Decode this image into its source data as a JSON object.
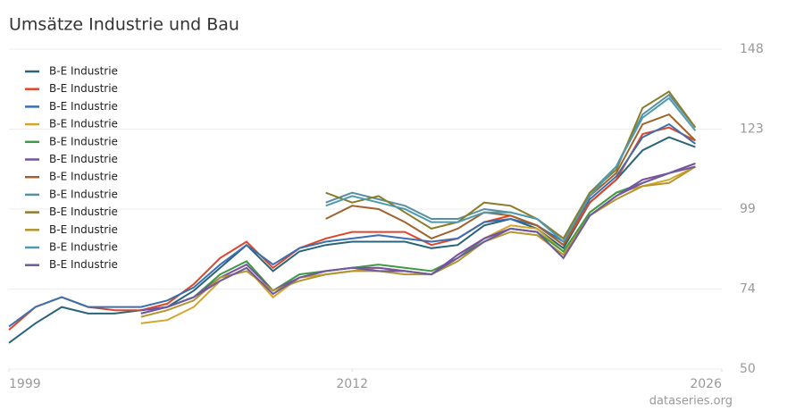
{
  "chart_data": {
    "type": "line",
    "title": "Umsätze Industrie und Bau",
    "source": "dataseries.org",
    "x": [
      1999,
      2000,
      2001,
      2002,
      2003,
      2004,
      2005,
      2006,
      2007,
      2008,
      2009,
      2010,
      2011,
      2012,
      2013,
      2014,
      2015,
      2016,
      2017,
      2018,
      2019,
      2020,
      2021,
      2022,
      2023,
      2024,
      2025
    ],
    "xlim": [
      1999,
      2026
    ],
    "xticks": [
      1999,
      2012,
      2026
    ],
    "ylim": [
      50,
      148
    ],
    "yticks": [
      50,
      {
        "value": 74.5,
        "label": "74"
      },
      99,
      {
        "value": 123.5,
        "label": "123"
      },
      148
    ],
    "grid": true,
    "series": [
      {
        "name": "B-E Industrie",
        "color": "#2a6478",
        "values": [
          58,
          64,
          69,
          67,
          67,
          68,
          69,
          74,
          81,
          88,
          80,
          86,
          88,
          89,
          89,
          89,
          87,
          88,
          94,
          96,
          93,
          87,
          101,
          108,
          117,
          121,
          118
        ]
      },
      {
        "name": "B-E Industrie",
        "color": "#e0452a",
        "values": [
          62,
          69,
          72,
          69,
          68,
          68,
          70,
          76,
          84,
          89,
          81,
          87,
          90,
          92,
          92,
          92,
          88,
          90,
          95,
          97,
          94,
          88,
          101,
          108,
          122,
          124,
          120
        ]
      },
      {
        "name": "B-E Industrie",
        "color": "#3a6fb0",
        "values": [
          63,
          69,
          72,
          69,
          69,
          69,
          71,
          75,
          82,
          88,
          82,
          87,
          89,
          90,
          91,
          90,
          89,
          90,
          95,
          96,
          94,
          89,
          102,
          109,
          121,
          125,
          119
        ]
      },
      {
        "name": "B-E Industrie",
        "color": "#d4a52b",
        "values": [
          null,
          null,
          null,
          null,
          null,
          64,
          65,
          69,
          77,
          81,
          72,
          78,
          79,
          80,
          81,
          80,
          79,
          84,
          90,
          94,
          93,
          86,
          98,
          104,
          106,
          108,
          112
        ]
      },
      {
        "name": "B-E Industrie",
        "color": "#3f9a45",
        "values": [
          null,
          null,
          null,
          null,
          null,
          67,
          69,
          72,
          79,
          83,
          74,
          79,
          80,
          81,
          82,
          81,
          80,
          84,
          90,
          93,
          92,
          86,
          98,
          104,
          107,
          110,
          113
        ]
      },
      {
        "name": "B-E Industrie",
        "color": "#7b4fa6",
        "values": [
          null,
          null,
          null,
          null,
          null,
          68,
          69,
          72,
          78,
          82,
          74,
          78,
          80,
          81,
          81,
          80,
          79,
          85,
          90,
          93,
          92,
          84,
          97,
          103,
          108,
          110,
          113
        ]
      },
      {
        "name": "B-E Industrie",
        "color": "#a0622d",
        "values": [
          null,
          null,
          null,
          null,
          null,
          null,
          null,
          null,
          null,
          null,
          null,
          null,
          96,
          100,
          99,
          95,
          90,
          93,
          98,
          97,
          94,
          88,
          103,
          110,
          125,
          128,
          120
        ]
      },
      {
        "name": "B-E Industrie",
        "color": "#5a8ea0",
        "values": [
          null,
          null,
          null,
          null,
          null,
          null,
          null,
          null,
          null,
          null,
          null,
          null,
          101,
          104,
          102,
          100,
          96,
          96,
          99,
          98,
          96,
          90,
          104,
          112,
          128,
          134,
          124
        ]
      },
      {
        "name": "B-E Industrie",
        "color": "#8a7d2a",
        "values": [
          null,
          null,
          null,
          null,
          null,
          null,
          null,
          null,
          null,
          null,
          null,
          null,
          104,
          101,
          103,
          98,
          93,
          95,
          101,
          100,
          96,
          90,
          104,
          111,
          130,
          135,
          124
        ]
      },
      {
        "name": "B-E Industrie",
        "color": "#b5952e",
        "values": [
          null,
          null,
          null,
          null,
          null,
          66,
          68,
          71,
          78,
          80,
          74,
          77,
          79,
          80,
          80,
          79,
          79,
          83,
          89,
          92,
          91,
          85,
          97,
          102,
          106,
          107,
          112
        ]
      },
      {
        "name": "B-E Industrie",
        "color": "#4d9bb0",
        "values": [
          null,
          null,
          null,
          null,
          null,
          null,
          null,
          null,
          null,
          null,
          null,
          null,
          100,
          103,
          101,
          99,
          95,
          95,
          98,
          98,
          96,
          89,
          103,
          112,
          127,
          133,
          123
        ]
      },
      {
        "name": "B-E Industrie",
        "color": "#6e5a9e",
        "values": [
          null,
          null,
          null,
          null,
          null,
          67,
          69,
          72,
          77,
          81,
          73,
          78,
          80,
          81,
          80,
          80,
          79,
          84,
          89,
          93,
          92,
          84,
          97,
          103,
          107,
          110,
          112
        ]
      }
    ]
  }
}
